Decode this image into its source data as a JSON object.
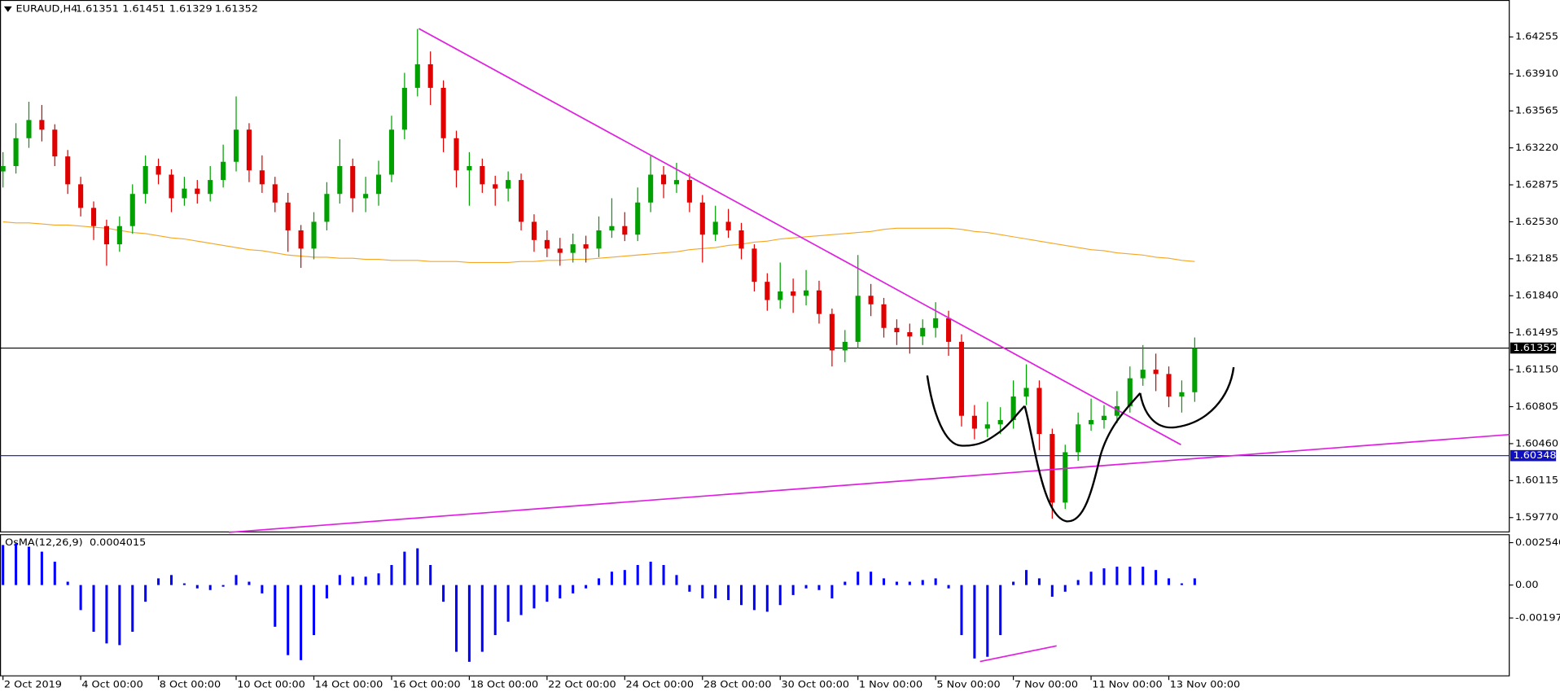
{
  "chart_data": [
    {
      "type": "candlestick",
      "title": "EURAUD,H4",
      "ohlc_header": [
        1.61351,
        1.61451,
        1.61329,
        1.61352
      ],
      "categories": [
        "2 Oct 2019",
        null,
        null,
        null,
        null,
        null,
        "4 Oct 00:00",
        null,
        null,
        null,
        null,
        null,
        "8 Oct 00:00",
        null,
        null,
        null,
        null,
        null,
        "10 Oct 00:00",
        null,
        null,
        null,
        null,
        null,
        "14 Oct 00:00",
        null,
        null,
        null,
        null,
        null,
        "16 Oct 00:00",
        null,
        null,
        null,
        null,
        null,
        "18 Oct 00:00",
        null,
        null,
        null,
        null,
        null,
        "22 Oct 00:00",
        null,
        null,
        null,
        null,
        null,
        "24 Oct 00:00",
        null,
        null,
        null,
        null,
        null,
        "28 Oct 00:00",
        null,
        null,
        null,
        null,
        null,
        "30 Oct 00:00",
        null,
        null,
        null,
        null,
        null,
        "1 Nov 00:00",
        null,
        null,
        null,
        null,
        null,
        "5 Nov 00:00",
        null,
        null,
        null,
        null,
        null,
        "7 Nov 00:00",
        null,
        null,
        null,
        null,
        null,
        "11 Nov 00:00",
        null,
        null,
        null,
        null,
        null,
        "13 Nov 00:00",
        null,
        null
      ],
      "open": [
        1.63,
        1.6305,
        1.6331,
        1.6348,
        1.6339,
        1.6314,
        1.6288,
        1.6266,
        1.6249,
        1.6232,
        1.6249,
        1.6279,
        1.6305,
        1.6297,
        1.6275,
        1.6284,
        1.6279,
        1.6292,
        1.6309,
        1.6339,
        1.6301,
        1.6288,
        1.6271,
        1.6245,
        1.6228,
        1.6253,
        1.6279,
        1.6305,
        1.6275,
        1.6279,
        1.6297,
        1.6339,
        1.6378,
        1.64,
        1.6378,
        1.6331,
        1.6301,
        1.6305,
        1.6288,
        1.6284,
        1.6292,
        1.6253,
        1.6236,
        1.6228,
        1.6224,
        1.6232,
        1.6228,
        1.6245,
        1.6249,
        1.6241,
        1.6271,
        1.6297,
        1.6288,
        1.6292,
        1.6271,
        1.6241,
        1.6253,
        1.6245,
        1.6228,
        1.6197,
        1.618,
        1.6188,
        1.6184,
        1.6189,
        1.6167,
        1.6133,
        1.6141,
        1.6184,
        1.6176,
        1.6154,
        1.615,
        1.6146,
        1.6154,
        1.6163,
        1.6141,
        1.6072,
        1.606,
        1.6064,
        1.6068,
        1.609,
        1.6098,
        1.6055,
        1.5991,
        1.6038,
        1.6064,
        1.6068,
        1.6072,
        1.6081,
        1.6107,
        1.6115,
        1.6111,
        1.609,
        1.6094
      ],
      "high": [
        1.6318,
        1.6345,
        1.6365,
        1.6362,
        1.6344,
        1.632,
        1.6295,
        1.6272,
        1.6255,
        1.6258,
        1.6288,
        1.6315,
        1.6312,
        1.6302,
        1.6295,
        1.6292,
        1.6305,
        1.6325,
        1.637,
        1.6345,
        1.6315,
        1.6295,
        1.628,
        1.625,
        1.6262,
        1.629,
        1.633,
        1.6312,
        1.6295,
        1.631,
        1.6352,
        1.6392,
        1.6433,
        1.6412,
        1.6385,
        1.6338,
        1.6318,
        1.6312,
        1.6296,
        1.63,
        1.6298,
        1.626,
        1.6245,
        1.6238,
        1.6242,
        1.624,
        1.6258,
        1.6275,
        1.6262,
        1.6285,
        1.6315,
        1.6305,
        1.6308,
        1.6298,
        1.6278,
        1.6268,
        1.6265,
        1.6252,
        1.6232,
        1.6205,
        1.6215,
        1.62,
        1.6208,
        1.6198,
        1.6172,
        1.6152,
        1.6222,
        1.6195,
        1.6182,
        1.6162,
        1.6158,
        1.6162,
        1.6178,
        1.617,
        1.6148,
        1.6082,
        1.6085,
        1.608,
        1.6105,
        1.612,
        1.6105,
        1.606,
        1.6045,
        1.6075,
        1.6088,
        1.6082,
        1.6095,
        1.6118,
        1.6138,
        1.613,
        1.6118,
        1.6105,
        1.61451
      ],
      "low": [
        1.6285,
        1.6298,
        1.6322,
        1.6328,
        1.6305,
        1.6279,
        1.6258,
        1.6236,
        1.6212,
        1.6225,
        1.6242,
        1.627,
        1.6288,
        1.6262,
        1.6268,
        1.627,
        1.6272,
        1.6285,
        1.63,
        1.629,
        1.628,
        1.6262,
        1.6225,
        1.621,
        1.6218,
        1.6245,
        1.627,
        1.6262,
        1.6262,
        1.6268,
        1.629,
        1.633,
        1.637,
        1.6362,
        1.6318,
        1.6285,
        1.6268,
        1.628,
        1.6268,
        1.6272,
        1.6245,
        1.6225,
        1.622,
        1.6212,
        1.6215,
        1.6215,
        1.622,
        1.6238,
        1.6235,
        1.6235,
        1.6262,
        1.6275,
        1.628,
        1.6262,
        1.6215,
        1.6235,
        1.6238,
        1.6218,
        1.6188,
        1.617,
        1.6172,
        1.6168,
        1.6175,
        1.6158,
        1.6118,
        1.6122,
        1.6135,
        1.6165,
        1.6145,
        1.6138,
        1.613,
        1.6138,
        1.6145,
        1.6128,
        1.6062,
        1.605,
        1.6052,
        1.6055,
        1.606,
        1.6082,
        1.604,
        1.5976,
        1.5985,
        1.603,
        1.6058,
        1.606,
        1.6065,
        1.6075,
        1.61,
        1.6095,
        1.608,
        1.6075,
        1.6085
      ],
      "close": [
        1.6305,
        1.6331,
        1.6348,
        1.6339,
        1.6314,
        1.6288,
        1.6266,
        1.6249,
        1.6232,
        1.6249,
        1.6279,
        1.6305,
        1.6297,
        1.6275,
        1.6284,
        1.6279,
        1.6292,
        1.6309,
        1.6339,
        1.6301,
        1.6288,
        1.6271,
        1.6245,
        1.6228,
        1.6253,
        1.6279,
        1.6305,
        1.6275,
        1.6279,
        1.6297,
        1.6339,
        1.6378,
        1.64,
        1.6378,
        1.6331,
        1.6301,
        1.6305,
        1.6288,
        1.6284,
        1.6292,
        1.6253,
        1.6236,
        1.6228,
        1.6224,
        1.6232,
        1.6228,
        1.6245,
        1.6249,
        1.6241,
        1.6271,
        1.6297,
        1.6288,
        1.6292,
        1.6271,
        1.6241,
        1.6253,
        1.6245,
        1.6228,
        1.6197,
        1.618,
        1.6188,
        1.6184,
        1.6189,
        1.6167,
        1.6133,
        1.6141,
        1.6184,
        1.6176,
        1.6154,
        1.615,
        1.6146,
        1.6154,
        1.6163,
        1.6141,
        1.6072,
        1.606,
        1.6064,
        1.6068,
        1.609,
        1.6098,
        1.6055,
        1.5991,
        1.6038,
        1.6064,
        1.6068,
        1.6072,
        1.6081,
        1.6107,
        1.6115,
        1.6111,
        1.609,
        1.6094,
        1.61352
      ],
      "up_color": "#00a000",
      "down_color": "#e00000",
      "ma": {
        "color": "#f5a623",
        "values": [
          1.6253,
          1.6252,
          1.6252,
          1.6251,
          1.625,
          1.625,
          1.6249,
          1.6248,
          1.6247,
          1.6245,
          1.6243,
          1.6242,
          1.624,
          1.6238,
          1.6237,
          1.6235,
          1.6233,
          1.6231,
          1.6229,
          1.6227,
          1.6226,
          1.6224,
          1.6222,
          1.6221,
          1.622,
          1.622,
          1.6219,
          1.6219,
          1.6218,
          1.6218,
          1.6217,
          1.6217,
          1.6217,
          1.6216,
          1.6216,
          1.6216,
          1.6215,
          1.6215,
          1.6215,
          1.6215,
          1.6216,
          1.6216,
          1.6217,
          1.6217,
          1.6218,
          1.6218,
          1.6219,
          1.622,
          1.6221,
          1.6222,
          1.6223,
          1.6224,
          1.6225,
          1.6227,
          1.6228,
          1.6229,
          1.6231,
          1.6232,
          1.6234,
          1.6235,
          1.6237,
          1.6238,
          1.6239,
          1.624,
          1.6241,
          1.6242,
          1.6243,
          1.6244,
          1.6246,
          1.6247,
          1.6247,
          1.6247,
          1.6247,
          1.6247,
          1.6246,
          1.6244,
          1.6243,
          1.6241,
          1.6239,
          1.6237,
          1.6235,
          1.6233,
          1.6231,
          1.6229,
          1.6227,
          1.6226,
          1.6224,
          1.6223,
          1.6222,
          1.622,
          1.6219,
          1.6217,
          1.6216
        ]
      },
      "price_lines": [
        {
          "value": 1.61352,
          "color": "#000000"
        },
        {
          "value": 1.60348,
          "color": "#1010c0"
        }
      ],
      "ylim": [
        1.59632,
        1.64591
      ],
      "yticks": [
        1.64255,
        {
          "value": 1.6391,
          "label": "1.63910"
        },
        1.63565,
        {
          "value": 1.6322,
          "label": "1.63220"
        },
        1.62875,
        {
          "value": 1.6253,
          "label": "1.62530"
        },
        1.62185,
        {
          "value": 1.6184,
          "label": "1.61840"
        },
        1.61495,
        {
          "value": 1.6115,
          "label": "1.61150"
        },
        1.60805,
        {
          "value": 1.6046,
          "label": "1.60460"
        },
        1.60115,
        {
          "value": 1.5977,
          "label": "1.59770"
        }
      ]
    },
    {
      "type": "bar",
      "title": "OsMA(12,26,9)",
      "last_value": 0.0004015,
      "color": "#0000ff",
      "values": [
        0.0024,
        0.0025,
        0.0023,
        0.002,
        0.0014,
        0.0002,
        -0.0015,
        -0.0028,
        -0.0035,
        -0.0036,
        -0.0028,
        -0.001,
        0.0004,
        0.0006,
        0.0001,
        -0.0002,
        -0.0003,
        -0.0001,
        0.0006,
        0.0002,
        -0.0005,
        -0.0025,
        -0.0042,
        -0.0045,
        -0.003,
        -0.0008,
        0.0006,
        0.0005,
        0.0005,
        0.0007,
        0.0012,
        0.002,
        0.0022,
        0.0012,
        -0.001,
        -0.004,
        -0.0046,
        -0.004,
        -0.003,
        -0.0022,
        -0.0018,
        -0.0014,
        -0.001,
        -0.0008,
        -0.0005,
        -0.0002,
        0.0004,
        0.0008,
        0.0009,
        0.0012,
        0.0014,
        0.0012,
        0.0006,
        -0.0004,
        -0.0008,
        -0.0008,
        -0.0009,
        -0.0012,
        -0.0015,
        -0.0016,
        -0.0012,
        -0.0006,
        -0.0002,
        -0.0003,
        -0.0008,
        0.0002,
        0.0008,
        0.0008,
        0.0004,
        0.0002,
        0.0002,
        0.0003,
        0.0004,
        -0.0002,
        -0.003,
        -0.0044,
        -0.0043,
        -0.003,
        0.0002,
        0.0009,
        0.0004,
        -0.0007,
        -0.0004,
        0.0003,
        0.0008,
        0.001,
        0.0011,
        0.0011,
        0.0011,
        0.0009,
        0.0004,
        0.0001,
        0.0004
      ],
      "ylim": [
        -0.00547,
        0.00299
      ],
      "yticks": [
        0.0025403,
        {
          "value": 0,
          "label": "0.00"
        },
        -0.0019742
      ]
    }
  ]
}
